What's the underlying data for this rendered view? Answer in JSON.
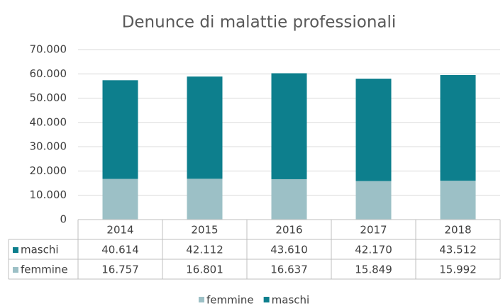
{
  "chart_data": {
    "type": "stacked_bar",
    "title": "Denunce di malattie professionali",
    "categories": [
      "2014",
      "2015",
      "2016",
      "2017",
      "2018"
    ],
    "series": [
      {
        "name": "femmine",
        "color": "#9cc0c6",
        "values": [
          16757,
          16801,
          16637,
          15849,
          15992
        ],
        "value_labels": [
          "16.757",
          "16.801",
          "16.637",
          "15.849",
          "15.992"
        ]
      },
      {
        "name": "maschi",
        "color": "#0d7f8d",
        "values": [
          40614,
          42112,
          43610,
          42170,
          43512
        ],
        "value_labels": [
          "40.614",
          "42.112",
          "43.610",
          "42.170",
          "43.512"
        ]
      }
    ],
    "ylim": [
      0,
      70000
    ],
    "yticks": [
      0,
      {
        "value": 10000,
        "label": "10.000"
      },
      {
        "value": 20000,
        "label": "20.000"
      },
      {
        "value": 30000,
        "label": "30.000"
      },
      {
        "value": 40000,
        "label": "40.000"
      },
      {
        "value": 50000,
        "label": "50.000"
      },
      {
        "value": 60000,
        "label": "60.000"
      },
      {
        "value": 70000,
        "label": "70.000"
      }
    ],
    "grid": true,
    "legend": "bottom",
    "data_table": true
  }
}
